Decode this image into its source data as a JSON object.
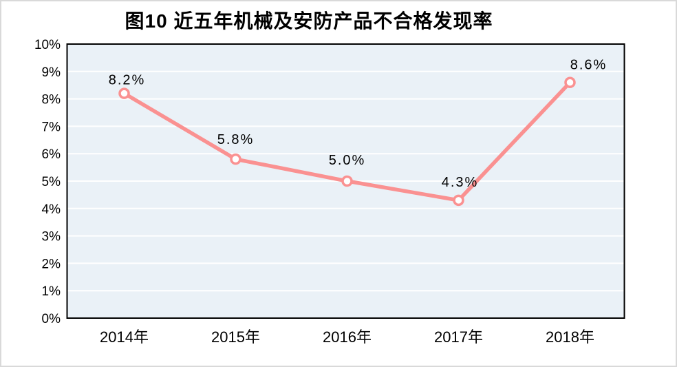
{
  "title": "图10 近五年机械及安防产品不合格发现率",
  "colors": {
    "line": "#FA9191",
    "marker_fill": "#FFFFFF",
    "plot_background": "#EAF1F7",
    "gridline": "#FFFFFF",
    "plot_border": "#000000",
    "frame_border": "#D9D9D9",
    "text": "#000000"
  },
  "chart_data": {
    "type": "line",
    "title": "图10 近五年机械及安防产品不合格发现率",
    "categories": [
      "2014年",
      "2015年",
      "2016年",
      "2017年",
      "2018年"
    ],
    "values": [
      8.2,
      5.8,
      5.0,
      4.3,
      8.6
    ],
    "point_labels": [
      "8.2%",
      "5.8%",
      "5.0%",
      "4.3%",
      "8.6%"
    ],
    "xlabel": "",
    "ylabel": "",
    "ylim": [
      0,
      10
    ],
    "y_tick_interval": 1,
    "y_tick_labels": [
      "0%",
      "1%",
      "2%",
      "3%",
      "4%",
      "5%",
      "6%",
      "7%",
      "8%",
      "9%",
      "10%"
    ],
    "grid": "horizontal",
    "legend_position": "none",
    "marker": "circle"
  }
}
